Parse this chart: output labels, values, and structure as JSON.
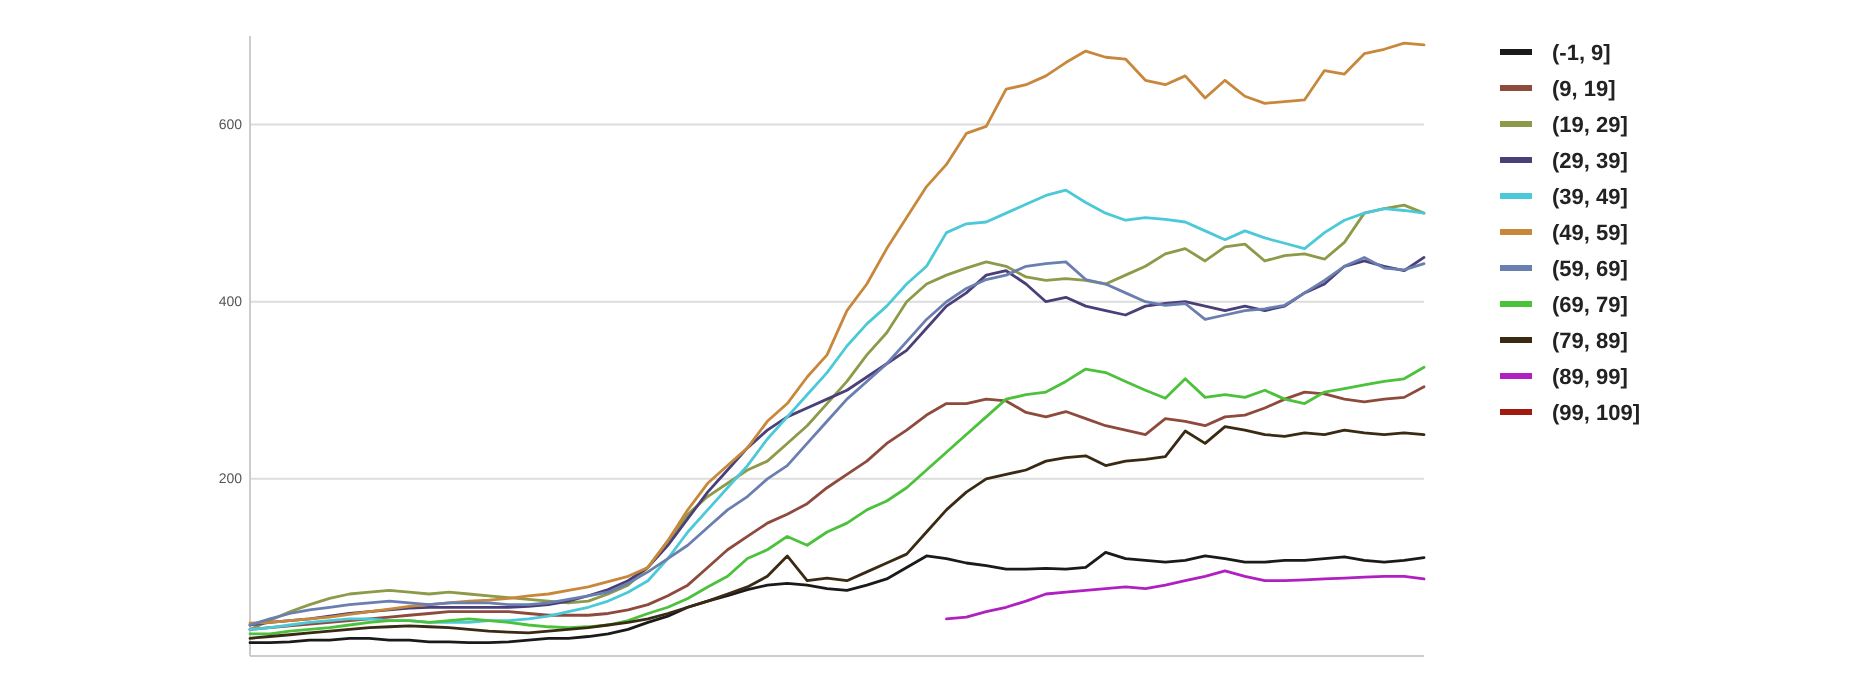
{
  "chart_data": {
    "type": "line",
    "categories": [
      null,
      null,
      null,
      null,
      null,
      null,
      null,
      null,
      null,
      null,
      null,
      null,
      null,
      null,
      null,
      null,
      null,
      null,
      null,
      null,
      null,
      null,
      null,
      null,
      null,
      null,
      null,
      null,
      null,
      null,
      null,
      null,
      null,
      null,
      null,
      null,
      null,
      null,
      null,
      null,
      null,
      null,
      null,
      null,
      null,
      null,
      null,
      null,
      null,
      null,
      null,
      null,
      null,
      null,
      null,
      null,
      null,
      null,
      null,
      null
    ],
    "ylim": [
      0,
      700
    ],
    "yticks": [
      200,
      400,
      600
    ],
    "grid": "y",
    "tick_labels": "y",
    "legend": "right",
    "line_style": "solid",
    "marker": "none",
    "series": [
      {
        "name": "(-1, 9]",
        "color": "#1a1a1a",
        "values": [
          15,
          15,
          16,
          18,
          18,
          20,
          20,
          18,
          18,
          16,
          16,
          15,
          15,
          16,
          18,
          20,
          20,
          22,
          25,
          30,
          38,
          45,
          55,
          62,
          68,
          75,
          80,
          82,
          80,
          76,
          74,
          80,
          87,
          100,
          113,
          110,
          105,
          102,
          98,
          98,
          99,
          98,
          100,
          117,
          110,
          108,
          106,
          108,
          113,
          110,
          106,
          106,
          108,
          108,
          110,
          112,
          108,
          106,
          108,
          111
        ]
      },
      {
        "name": "(9, 19]",
        "color": "#8e4a3c",
        "values": [
          30,
          32,
          34,
          36,
          38,
          40,
          42,
          44,
          46,
          48,
          50,
          50,
          50,
          50,
          48,
          46,
          46,
          46,
          48,
          52,
          58,
          68,
          80,
          100,
          120,
          135,
          150,
          160,
          172,
          190,
          205,
          220,
          240,
          255,
          272,
          285,
          285,
          290,
          288,
          275,
          270,
          276,
          268,
          260,
          255,
          250,
          268,
          265,
          260,
          270,
          272,
          280,
          290,
          298,
          296,
          290,
          287,
          290,
          292,
          304
        ]
      },
      {
        "name": "(19, 29]",
        "color": "#8c9a4a",
        "values": [
          30,
          40,
          50,
          58,
          65,
          70,
          72,
          74,
          72,
          70,
          72,
          70,
          68,
          66,
          64,
          62,
          60,
          62,
          70,
          80,
          100,
          130,
          160,
          180,
          195,
          210,
          220,
          240,
          260,
          285,
          310,
          340,
          365,
          400,
          420,
          430,
          438,
          445,
          440,
          428,
          424,
          426,
          424,
          420,
          430,
          440,
          454,
          460,
          446,
          462,
          465,
          446,
          452,
          454,
          448,
          467,
          500,
          505,
          509,
          500
        ]
      },
      {
        "name": "(29, 39]",
        "color": "#4b3f7a",
        "values": [
          35,
          38,
          40,
          42,
          45,
          48,
          50,
          52,
          54,
          55,
          55,
          55,
          55,
          55,
          56,
          58,
          62,
          68,
          75,
          85,
          100,
          125,
          155,
          185,
          210,
          235,
          255,
          270,
          280,
          290,
          300,
          315,
          330,
          345,
          370,
          395,
          410,
          430,
          435,
          420,
          400,
          405,
          395,
          390,
          385,
          395,
          398,
          400,
          395,
          390,
          395,
          390,
          395,
          410,
          420,
          440,
          446,
          440,
          435,
          450
        ]
      },
      {
        "name": "(39, 49]",
        "color": "#4cc9d8",
        "values": [
          30,
          32,
          35,
          38,
          40,
          42,
          42,
          40,
          40,
          38,
          38,
          38,
          40,
          40,
          42,
          45,
          50,
          55,
          62,
          72,
          85,
          110,
          140,
          165,
          190,
          215,
          245,
          270,
          295,
          320,
          350,
          375,
          395,
          420,
          440,
          478,
          488,
          490,
          500,
          510,
          520,
          526,
          512,
          500,
          492,
          495,
          493,
          490,
          480,
          470,
          480,
          472,
          466,
          460,
          478,
          492,
          500,
          505,
          503,
          500
        ]
      },
      {
        "name": "(49, 59]",
        "color": "#c8883c",
        "values": [
          37,
          38,
          40,
          42,
          44,
          47,
          50,
          53,
          56,
          58,
          60,
          62,
          63,
          65,
          68,
          70,
          74,
          78,
          84,
          90,
          100,
          130,
          165,
          195,
          215,
          235,
          265,
          285,
          315,
          340,
          390,
          420,
          460,
          495,
          530,
          555,
          590,
          598,
          640,
          645,
          655,
          670,
          683,
          676,
          674,
          650,
          645,
          655,
          630,
          650,
          632,
          624,
          626,
          628,
          661,
          657,
          680,
          685,
          692,
          690
        ]
      },
      {
        "name": "(59, 69]",
        "color": "#6a7fb0",
        "values": [
          35,
          42,
          48,
          52,
          55,
          58,
          60,
          62,
          60,
          58,
          60,
          60,
          60,
          58,
          58,
          60,
          64,
          68,
          72,
          82,
          95,
          110,
          125,
          145,
          165,
          180,
          200,
          215,
          240,
          265,
          290,
          310,
          330,
          355,
          380,
          400,
          415,
          425,
          430,
          440,
          443,
          445,
          425,
          420,
          410,
          400,
          396,
          398,
          380,
          385,
          390,
          392,
          396,
          410,
          424,
          440,
          450,
          438,
          436,
          443
        ]
      },
      {
        "name": "(69, 79]",
        "color": "#4cc23c",
        "values": [
          25,
          25,
          28,
          30,
          32,
          35,
          38,
          40,
          40,
          38,
          40,
          42,
          40,
          38,
          35,
          33,
          32,
          33,
          35,
          40,
          48,
          55,
          65,
          78,
          90,
          110,
          120,
          135,
          125,
          140,
          150,
          165,
          175,
          190,
          210,
          230,
          250,
          270,
          290,
          295,
          298,
          310,
          324,
          320,
          310,
          300,
          291,
          313,
          292,
          295,
          292,
          300,
          290,
          285,
          298,
          302,
          306,
          310,
          313,
          326
        ]
      },
      {
        "name": "(79, 89]",
        "color": "#3a2a14",
        "values": [
          20,
          22,
          24,
          26,
          28,
          30,
          32,
          33,
          34,
          33,
          32,
          30,
          28,
          27,
          26,
          28,
          30,
          32,
          35,
          38,
          42,
          48,
          55,
          62,
          70,
          78,
          90,
          113,
          85,
          88,
          85,
          95,
          105,
          115,
          140,
          165,
          185,
          200,
          205,
          210,
          220,
          224,
          226,
          215,
          220,
          222,
          225,
          254,
          240,
          259,
          255,
          250,
          248,
          252,
          250,
          255,
          252,
          250,
          252,
          250
        ]
      },
      {
        "name": "(89, 99]",
        "color": "#b020c0",
        "values": [
          null,
          null,
          null,
          null,
          null,
          null,
          null,
          null,
          null,
          null,
          null,
          null,
          null,
          null,
          null,
          null,
          null,
          null,
          null,
          null,
          null,
          null,
          null,
          null,
          null,
          null,
          null,
          null,
          null,
          null,
          null,
          null,
          null,
          null,
          null,
          42,
          44,
          50,
          55,
          62,
          70,
          72,
          74,
          76,
          78,
          76,
          80,
          85,
          90,
          96,
          90,
          85,
          85,
          86,
          87,
          88,
          89,
          90,
          90,
          87
        ]
      },
      {
        "name": "(99, 109]",
        "color": "#a01a10",
        "values": [
          null,
          null,
          null,
          null,
          null,
          null,
          null,
          null,
          null,
          null,
          null,
          null,
          null,
          null,
          null,
          null,
          null,
          null,
          null,
          null,
          null,
          null,
          null,
          null,
          null,
          null,
          null,
          null,
          null,
          null,
          null,
          null,
          null,
          null,
          null,
          null,
          null,
          null,
          null,
          null,
          null,
          null,
          null,
          null,
          null,
          null,
          null,
          null,
          null,
          null,
          null,
          null,
          null,
          null,
          null,
          null,
          null,
          null,
          null,
          null
        ]
      }
    ]
  }
}
